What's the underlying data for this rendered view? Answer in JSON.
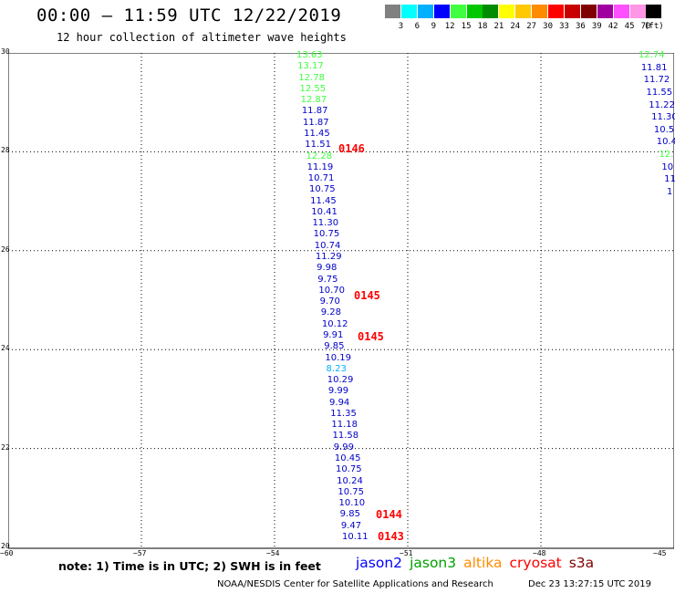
{
  "header": {
    "title": "00:00 – 11:59 UTC 12/22/2019",
    "subtitle": "12 hour collection of altimeter wave heights"
  },
  "legend": {
    "colors": [
      "#808080",
      "#00ffff",
      "#00b0ff",
      "#0000ff",
      "#40ff40",
      "#00c800",
      "#008c00",
      "#ffff00",
      "#ffc800",
      "#ff8c00",
      "#ff0000",
      "#c80000",
      "#800000",
      "#a000a0",
      "#ff50ff",
      "#ff96e6",
      "#000000"
    ],
    "labels": [
      "3",
      "6",
      "9",
      "12",
      "15",
      "18",
      "21",
      "24",
      "27",
      "30",
      "33",
      "36",
      "39",
      "42",
      "45",
      "70"
    ],
    "unit": "(ft)"
  },
  "axes": {
    "y_ticks": [
      "30",
      "28",
      "26",
      "24",
      "22",
      "20"
    ],
    "x_ticks": [
      "−60",
      "−57",
      "−54",
      "−51",
      "−48",
      "−45"
    ]
  },
  "passes": [
    {
      "label": "0146",
      "lat": 28.05
    },
    {
      "label": "0145",
      "lat": 25.07
    },
    {
      "label": "0145",
      "lat": 24.25
    },
    {
      "label": "0144",
      "lat": 20.65
    },
    {
      "label": "0143",
      "lat": 20.2
    }
  ],
  "track_main": [
    {
      "v": "13.63",
      "c": "#40ff40"
    },
    {
      "v": "13.17",
      "c": "#40ff40"
    },
    {
      "v": "12.78",
      "c": "#40ff40"
    },
    {
      "v": "12.55",
      "c": "#40ff40"
    },
    {
      "v": "12.87",
      "c": "#40ff40"
    },
    {
      "v": "11.87",
      "c": "#0000c8"
    },
    {
      "v": "11.87",
      "c": "#0000c8"
    },
    {
      "v": "11.45",
      "c": "#0000c8"
    },
    {
      "v": "11.51",
      "c": "#0000c8"
    },
    {
      "v": "12.28",
      "c": "#40ff40"
    },
    {
      "v": "11.19",
      "c": "#0000c8"
    },
    {
      "v": "10.71",
      "c": "#0000c8"
    },
    {
      "v": "10.75",
      "c": "#0000c8"
    },
    {
      "v": "11.45",
      "c": "#0000c8"
    },
    {
      "v": "10.41",
      "c": "#0000c8"
    },
    {
      "v": "11.30",
      "c": "#0000c8"
    },
    {
      "v": "10.75",
      "c": "#0000c8"
    },
    {
      "v": "10.74",
      "c": "#0000c8"
    },
    {
      "v": "11.29",
      "c": "#0000c8"
    },
    {
      "v": "9.98",
      "c": "#0000c8"
    },
    {
      "v": "9.75",
      "c": "#0000c8"
    },
    {
      "v": "10.70",
      "c": "#0000c8"
    },
    {
      "v": "9.70",
      "c": "#0000c8"
    },
    {
      "v": "9.28",
      "c": "#0000c8"
    },
    {
      "v": "10.12",
      "c": "#0000c8"
    },
    {
      "v": "9.91",
      "c": "#0000c8"
    },
    {
      "v": "9.85",
      "c": "#0000c8"
    },
    {
      "v": "10.19",
      "c": "#0000c8"
    },
    {
      "v": "8.23",
      "c": "#00b0ff"
    },
    {
      "v": "10.29",
      "c": "#0000c8"
    },
    {
      "v": "9.99",
      "c": "#0000c8"
    },
    {
      "v": "9.94",
      "c": "#0000c8"
    },
    {
      "v": "11.35",
      "c": "#0000c8"
    },
    {
      "v": "11.18",
      "c": "#0000c8"
    },
    {
      "v": "11.58",
      "c": "#0000c8"
    },
    {
      "v": "9.99",
      "c": "#0000c8"
    },
    {
      "v": "10.45",
      "c": "#0000c8"
    },
    {
      "v": "10.75",
      "c": "#0000c8"
    },
    {
      "v": "10.24",
      "c": "#0000c8"
    },
    {
      "v": "10.75",
      "c": "#0000c8"
    },
    {
      "v": "10.10",
      "c": "#0000c8"
    },
    {
      "v": "9.85",
      "c": "#0000c8"
    },
    {
      "v": "9.47",
      "c": "#0000c8"
    },
    {
      "v": "10.11",
      "c": "#0000c8"
    }
  ],
  "track_right": [
    {
      "v": "12.74",
      "c": "#40ff40"
    },
    {
      "v": "11.81",
      "c": "#0000c8"
    },
    {
      "v": "11.72",
      "c": "#0000c8"
    },
    {
      "v": "11.55",
      "c": "#0000c8"
    },
    {
      "v": "11.22",
      "c": "#0000c8"
    },
    {
      "v": "11.30",
      "c": "#0000c8"
    },
    {
      "v": "10.5",
      "c": "#0000c8"
    },
    {
      "v": "10.4",
      "c": "#0000c8"
    },
    {
      "v": "12.",
      "c": "#40ff40"
    },
    {
      "v": "10",
      "c": "#0000c8"
    },
    {
      "v": "11",
      "c": "#0000c8"
    },
    {
      "v": "1",
      "c": "#0000c8"
    }
  ],
  "footer": {
    "note": "note: 1) Time is in UTC; 2) SWH is in feet",
    "satellites": [
      {
        "name": "jason2",
        "color": "#0000ff"
      },
      {
        "name": "jason3",
        "color": "#00a000"
      },
      {
        "name": "altika",
        "color": "#ff8c00"
      },
      {
        "name": "cryosat",
        "color": "#ff0000"
      },
      {
        "name": "s3a",
        "color": "#800000"
      }
    ],
    "credit": "NOAA/NESDIS Center for Satellite Applications and Research",
    "timestamp": "Dec 23 13:27:15 UTC 2019"
  }
}
